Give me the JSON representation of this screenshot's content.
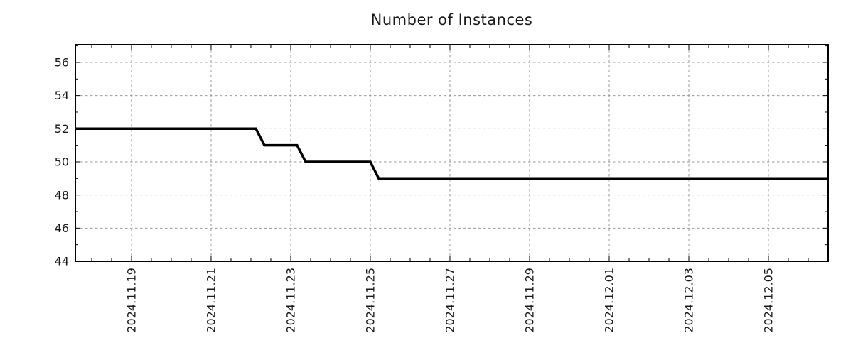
{
  "chart": {
    "title": "Number of Instances",
    "colors": {
      "background": "#ffffff",
      "line": "#000000",
      "grid": "#9a9a9a",
      "axis": "#000000",
      "text": "#1a1a1a"
    }
  },
  "chart_data": {
    "type": "line",
    "title": "Number of Instances",
    "xlabel": "",
    "ylabel": "",
    "grid": true,
    "legend_position": "none",
    "x_tick_labels": [
      "2024.11.19",
      "2024.11.21",
      "2024.11.23",
      "2024.11.25",
      "2024.11.27",
      "2024.11.29",
      "2024.12.01",
      "2024.12.03",
      "2024.12.05"
    ],
    "x_tick_positions_days": [
      0,
      2,
      4,
      6,
      8,
      10,
      12,
      14,
      16
    ],
    "x_minor_step_days": 0.5,
    "x_range_days": [
      -1.41,
      17.5
    ],
    "y_ticks": [
      44,
      46,
      48,
      50,
      52,
      54,
      56
    ],
    "y_minor_step": 1,
    "ylim": [
      44,
      57.07
    ],
    "series": [
      {
        "name": "instances",
        "color": "#000000",
        "points_day_value": [
          [
            -1.41,
            52
          ],
          [
            3.125,
            52
          ],
          [
            3.34,
            51
          ],
          [
            4.16,
            51
          ],
          [
            4.375,
            50
          ],
          [
            6.0,
            50
          ],
          [
            6.21,
            49
          ],
          [
            17.5,
            49
          ]
        ]
      }
    ]
  }
}
